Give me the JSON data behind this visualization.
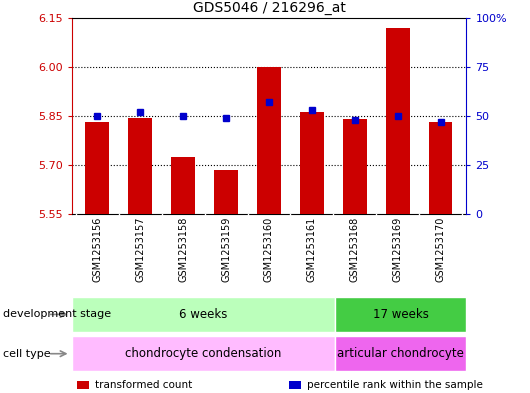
{
  "title": "GDS5046 / 216296_at",
  "samples": [
    "GSM1253156",
    "GSM1253157",
    "GSM1253158",
    "GSM1253159",
    "GSM1253160",
    "GSM1253161",
    "GSM1253168",
    "GSM1253169",
    "GSM1253170"
  ],
  "transformed_counts": [
    5.83,
    5.845,
    5.725,
    5.685,
    6.0,
    5.863,
    5.84,
    6.12,
    5.83
  ],
  "percentile_ranks": [
    50,
    52,
    50,
    49,
    57,
    53,
    48,
    50,
    47
  ],
  "ylim_left": [
    5.55,
    6.15
  ],
  "ylim_right": [
    0,
    100
  ],
  "yticks_left": [
    5.55,
    5.7,
    5.85,
    6.0,
    6.15
  ],
  "yticks_right": [
    0,
    25,
    50,
    75,
    100
  ],
  "ytick_labels_right": [
    "0",
    "25",
    "50",
    "75",
    "100%"
  ],
  "hlines": [
    5.7,
    5.85,
    6.0
  ],
  "bar_color": "#cc0000",
  "dot_color": "#0000cc",
  "bar_bottom": 5.55,
  "n_groups_split": 6,
  "development_stage_groups": [
    {
      "label": "6 weeks",
      "start": 0,
      "end": 6,
      "color": "#bbffbb"
    },
    {
      "label": "17 weeks",
      "start": 6,
      "end": 9,
      "color": "#44cc44"
    }
  ],
  "cell_type_groups": [
    {
      "label": "chondrocyte condensation",
      "start": 0,
      "end": 6,
      "color": "#ffbbff"
    },
    {
      "label": "articular chondrocyte",
      "start": 6,
      "end": 9,
      "color": "#ee66ee"
    }
  ],
  "row_label_dev": "development stage",
  "row_label_cell": "cell type",
  "legend_items": [
    {
      "color": "#cc0000",
      "label": "transformed count"
    },
    {
      "color": "#0000cc",
      "label": "percentile rank within the sample"
    }
  ],
  "tick_color_left": "#cc0000",
  "tick_color_right": "#0000cc",
  "bg_color": "#ffffff",
  "plot_bg": "#ffffff",
  "label_bg": "#cccccc",
  "border_color": "#000000",
  "divider_color": "#ffffff"
}
